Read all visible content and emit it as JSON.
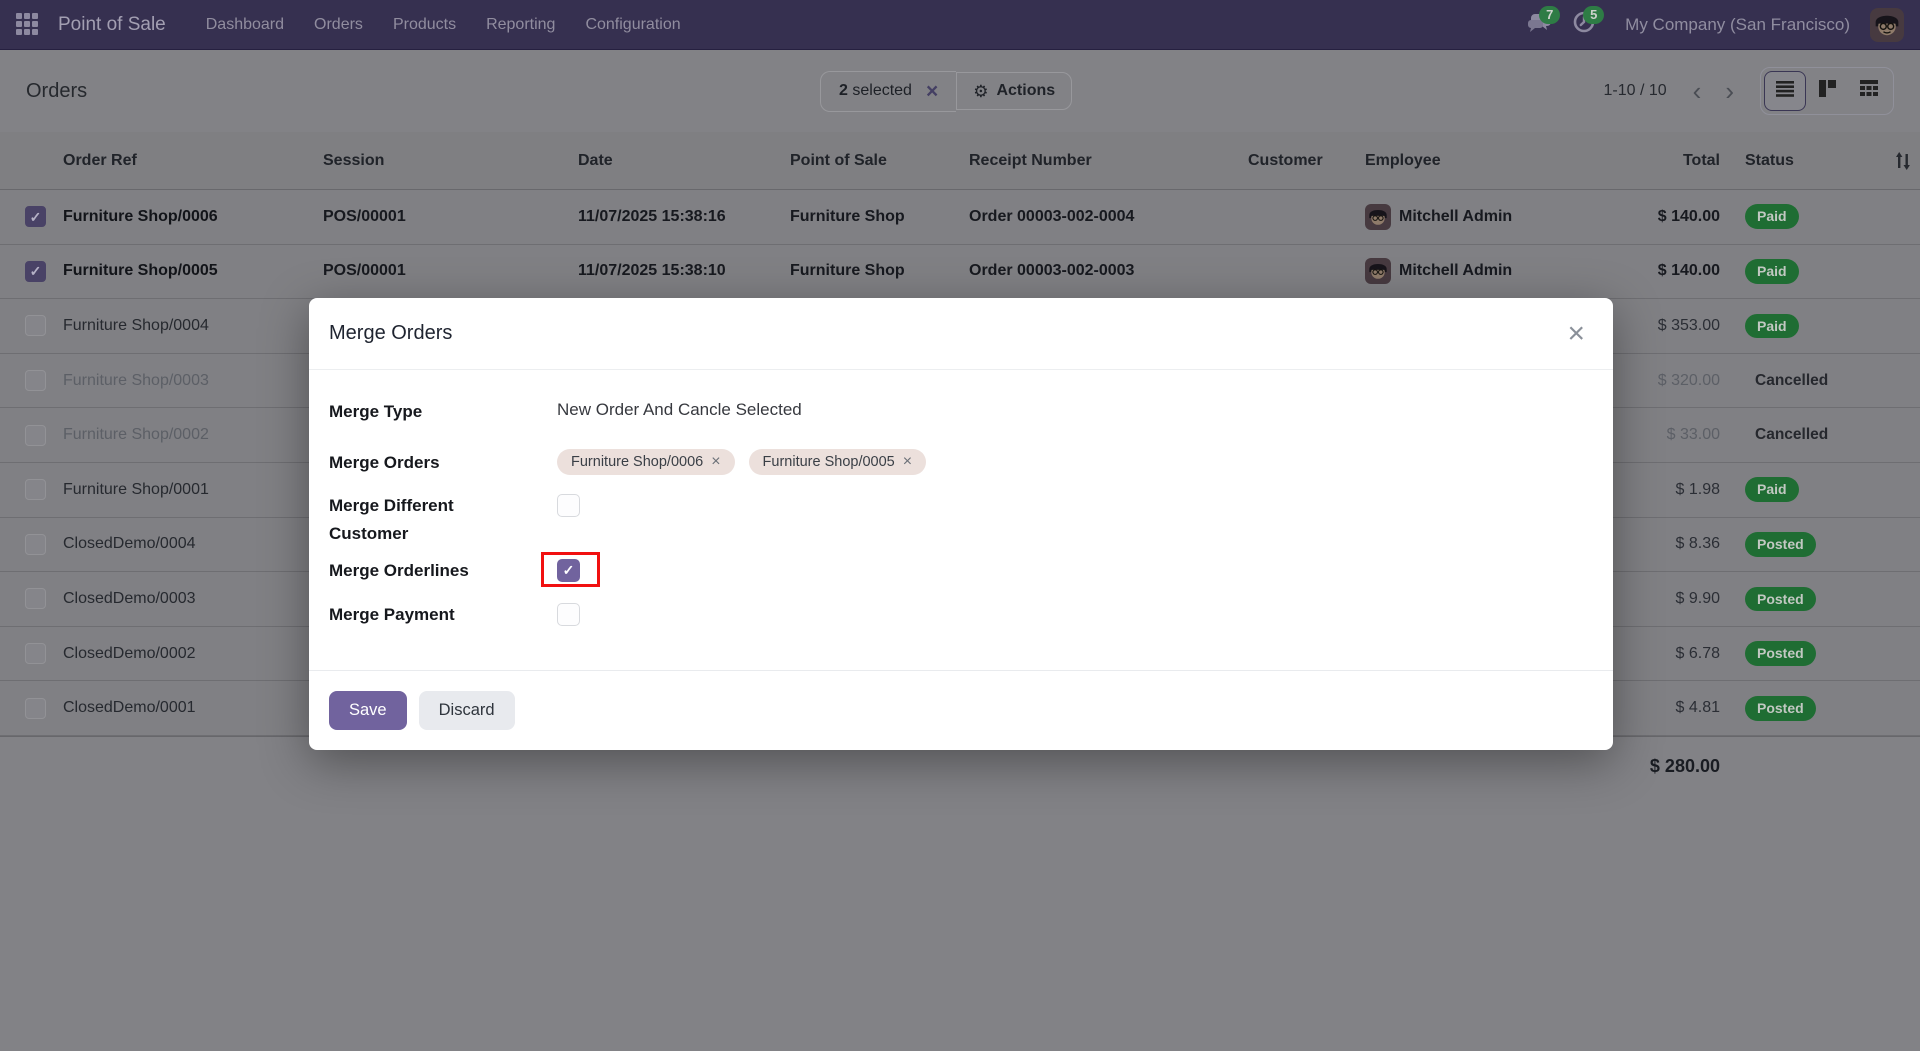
{
  "colors": {
    "primary": "#71639e",
    "navbar": "#363050",
    "badge": "#1f6d33",
    "red": "#f11010",
    "tag": "#ece0dc"
  },
  "icons": {
    "check": "✓",
    "close": "×",
    "gear": "⚙",
    "chevron_left": "‹",
    "chevron_right": "›",
    "remove": "×"
  },
  "navbar": {
    "brand": "Point of Sale",
    "menus": [
      "Dashboard",
      "Orders",
      "Products",
      "Reporting",
      "Configuration"
    ],
    "messages_count": "7",
    "activities_count": "5",
    "company": "My Company (San Francisco)"
  },
  "control_panel": {
    "title": "Orders",
    "selected_count": "2",
    "selected_word": "selected",
    "actions_label": "Actions",
    "pager": "1-10 / 10"
  },
  "table": {
    "columns": [
      "Order Ref",
      "Session",
      "Date",
      "Point of Sale",
      "Receipt Number",
      "Customer",
      "Employee",
      "Total",
      "Status"
    ],
    "rows": [
      {
        "ref": "Furniture Shop/0006",
        "session": "POS/00001",
        "date": "11/07/2025 15:38:16",
        "pos": "Furniture Shop",
        "receipt": "Order 00003-002-0004",
        "customer": "",
        "employee": "Mitchell Admin",
        "total": "$ 140.00",
        "status": "Paid",
        "status_type": "badge",
        "checked": true,
        "selected": true,
        "muted": false
      },
      {
        "ref": "Furniture Shop/0005",
        "session": "POS/00001",
        "date": "11/07/2025 15:38:10",
        "pos": "Furniture Shop",
        "receipt": "Order 00003-002-0003",
        "customer": "",
        "employee": "Mitchell Admin",
        "total": "$ 140.00",
        "status": "Paid",
        "status_type": "badge",
        "checked": true,
        "selected": true,
        "muted": false
      },
      {
        "ref": "Furniture Shop/0004",
        "session": "",
        "date": "",
        "pos": "",
        "receipt": "",
        "customer": "",
        "employee": "",
        "total": "$ 353.00",
        "status": "Paid",
        "status_type": "badge",
        "checked": false,
        "selected": false,
        "muted": false
      },
      {
        "ref": "Furniture Shop/0003",
        "session": "",
        "date": "",
        "pos": "",
        "receipt": "",
        "customer": "",
        "employee": "",
        "total": "$ 320.00",
        "status": "Cancelled",
        "status_type": "text",
        "checked": false,
        "selected": false,
        "muted": true
      },
      {
        "ref": "Furniture Shop/0002",
        "session": "",
        "date": "",
        "pos": "",
        "receipt": "",
        "customer": "",
        "employee": "",
        "total": "$ 33.00",
        "status": "Cancelled",
        "status_type": "text",
        "checked": false,
        "selected": false,
        "muted": true
      },
      {
        "ref": "Furniture Shop/0001",
        "session": "",
        "date": "",
        "pos": "",
        "receipt": "",
        "customer": "",
        "employee": "",
        "total": "$ 1.98",
        "status": "Paid",
        "status_type": "badge",
        "checked": false,
        "selected": false,
        "muted": false
      },
      {
        "ref": "ClosedDemo/0004",
        "session": "",
        "date": "",
        "pos": "",
        "receipt": "",
        "customer": "",
        "employee": "",
        "total": "$ 8.36",
        "status": "Posted",
        "status_type": "badge",
        "checked": false,
        "selected": false,
        "muted": false
      },
      {
        "ref": "ClosedDemo/0003",
        "session": "",
        "date": "",
        "pos": "",
        "receipt": "",
        "customer": "",
        "employee": "",
        "total": "$ 9.90",
        "status": "Posted",
        "status_type": "badge",
        "checked": false,
        "selected": false,
        "muted": false
      },
      {
        "ref": "ClosedDemo/0002",
        "session": "",
        "date": "",
        "pos": "",
        "receipt": "",
        "customer": "",
        "employee": "",
        "total": "$ 6.78",
        "status": "Posted",
        "status_type": "badge",
        "checked": false,
        "selected": false,
        "muted": false
      },
      {
        "ref": "ClosedDemo/0001",
        "session": "",
        "date": "",
        "pos": "",
        "receipt": "",
        "customer": "",
        "employee": "",
        "total": "$ 4.81",
        "status": "Posted",
        "status_type": "badge",
        "checked": false,
        "selected": false,
        "muted": false
      }
    ],
    "footer_total": "$ 280.00"
  },
  "modal": {
    "title": "Merge Orders",
    "merge_type_label": "Merge Type",
    "merge_type_value": "New Order And Cancle Selected",
    "merge_orders_label": "Merge Orders",
    "tags": [
      "Furniture Shop/0006",
      "Furniture Shop/0005"
    ],
    "merge_different_customer_label": "Merge Different Customer",
    "merge_orderlines_label": "Merge Orderlines",
    "merge_payment_label": "Merge Payment",
    "save_label": "Save",
    "discard_label": "Discard"
  }
}
